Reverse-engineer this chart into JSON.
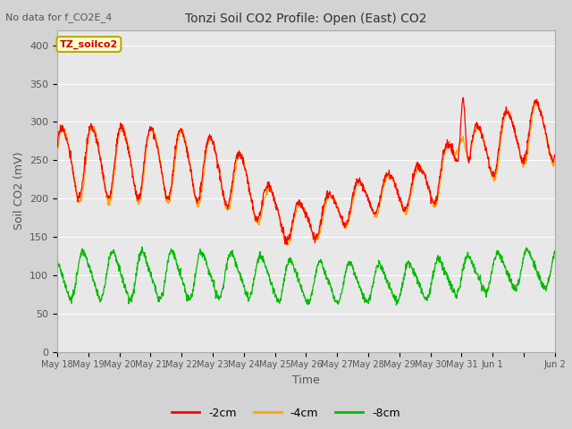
{
  "title": "Tonzi Soil CO2 Profile: Open (East) CO2",
  "subtitle": "No data for f_CO2E_4",
  "ylabel": "Soil CO2 (mV)",
  "xlabel": "Time",
  "legend_label": "TZ_soilco2",
  "series_labels": [
    "-2cm",
    "-4cm",
    "-8cm"
  ],
  "series_colors": [
    "#ff0000",
    "#ffa500",
    "#00bb00"
  ],
  "ylim": [
    0,
    420
  ],
  "yticks": [
    0,
    50,
    100,
    150,
    200,
    250,
    300,
    350,
    400
  ],
  "bg_color": "#d3d3d3",
  "plot_bg_color": "#e8e8e8",
  "grid_color": "#ffffff",
  "n_days": 16,
  "pts_per_day": 96,
  "seed": 17
}
